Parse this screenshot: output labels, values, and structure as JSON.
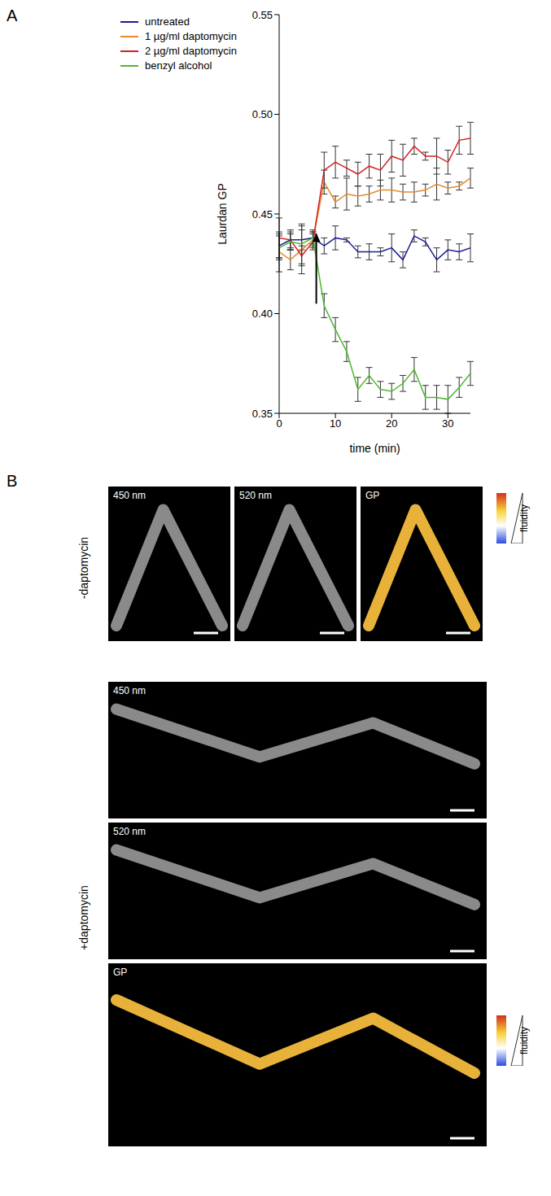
{
  "chart_data": {
    "type": "line",
    "x_label": "time (min)",
    "y_label": "Laurdan GP",
    "x": [
      0,
      2,
      4,
      6,
      8,
      10,
      12,
      14,
      16,
      18,
      20,
      22,
      24,
      26,
      28,
      30,
      32,
      34
    ],
    "xlim": [
      0,
      34
    ],
    "xticks": [
      0,
      10,
      20,
      30
    ],
    "ylim": [
      0.35,
      0.55
    ],
    "yticks": [
      0.35,
      {
        "value": 0.4,
        "label": "0.40"
      },
      0.45,
      {
        "value": 0.5,
        "label": "0.50"
      },
      0.55
    ],
    "legend": "upper left",
    "grid": false,
    "series": [
      {
        "name": "untreated",
        "color": "#1c1c96",
        "values": [
          0.434,
          0.437,
          0.437,
          0.438,
          0.434,
          0.438,
          0.437,
          0.431,
          0.431,
          0.431,
          0.433,
          0.427,
          0.439,
          0.436,
          0.427,
          0.432,
          0.431,
          0.433
        ],
        "errors": [
          0.006,
          0.004,
          0.005,
          0.004,
          0.004,
          0.006,
          0.001,
          0.003,
          0.004,
          0.002,
          0.007,
          0.004,
          0.003,
          0.002,
          0.006,
          0.005,
          0.004,
          0.007
        ]
      },
      {
        "name": "1 µg/ml daptomycin",
        "color": "#e8892b",
        "values": [
          0.431,
          0.427,
          0.432,
          0.437,
          0.466,
          0.456,
          0.46,
          0.459,
          0.46,
          0.462,
          0.462,
          0.461,
          0.461,
          0.462,
          0.465,
          0.463,
          0.464,
          0.468
        ],
        "errors": [
          0.01,
          0.005,
          0.012,
          0.004,
          0.006,
          0.003,
          0.008,
          0.005,
          0.004,
          0.005,
          0.006,
          0.004,
          0.005,
          0.003,
          0.008,
          0.003,
          0.002,
          0.005
        ]
      },
      {
        "name": "2 µg/ml daptomycin",
        "color": "#d42020",
        "values": [
          0.438,
          0.437,
          0.429,
          0.436,
          0.472,
          0.476,
          0.473,
          0.47,
          0.474,
          0.472,
          0.479,
          0.477,
          0.484,
          0.479,
          0.479,
          0.476,
          0.487,
          0.488
        ],
        "errors": [
          0.01,
          0.005,
          0.005,
          0.004,
          0.009,
          0.008,
          0.004,
          0.006,
          0.006,
          0.008,
          0.008,
          0.008,
          0.004,
          0.002,
          0.009,
          0.006,
          0.007,
          0.008
        ]
      },
      {
        "name": "benzyl alcohol",
        "color": "#4cba2e",
        "values": [
          0.433,
          0.436,
          0.435,
          0.438,
          0.404,
          0.392,
          0.381,
          0.362,
          0.369,
          0.362,
          0.361,
          0.365,
          0.372,
          0.358,
          0.358,
          0.357,
          0.363,
          0.37
        ],
        "errors": [
          0.006,
          0.004,
          0.01,
          0.003,
          0.006,
          0.006,
          0.005,
          0.006,
          0.004,
          0.004,
          0.004,
          0.004,
          0.006,
          0.006,
          0.006,
          0.007,
          0.005,
          0.006
        ]
      }
    ],
    "annotations": [
      {
        "type": "arrow",
        "x": 6.6,
        "y_start": 0.405,
        "y_end": 0.44
      }
    ]
  },
  "figure": {
    "panel_labels": [
      "A",
      "B"
    ],
    "panel_b": {
      "rows": [
        {
          "label": "-daptomycin",
          "images": [
            "450 nm",
            "520 nm",
            "GP"
          ],
          "colorbar": "fluidity"
        },
        {
          "label": "+daptomycin",
          "images": [
            "450 nm",
            "520 nm",
            "GP"
          ],
          "colorbar": "fluidity"
        }
      ]
    }
  }
}
